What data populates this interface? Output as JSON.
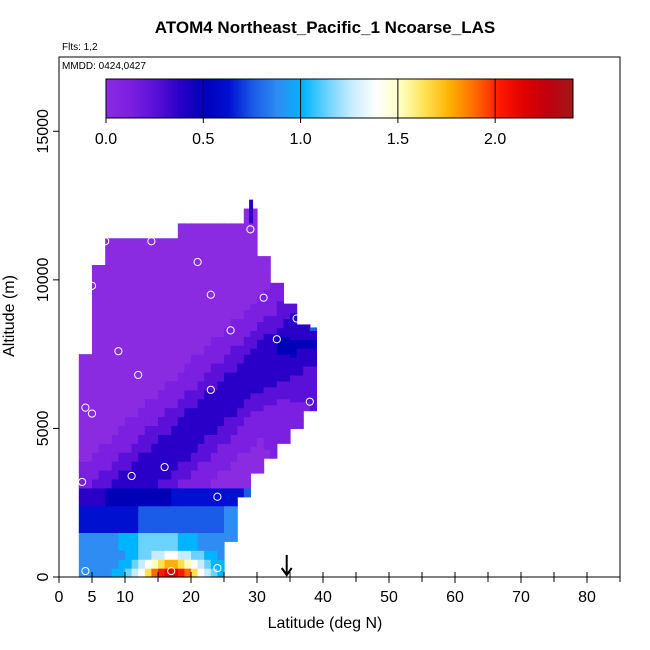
{
  "chart_data": {
    "type": "heatmap",
    "title": "ATOM4 Northeast_Pacific_1 Ncoarse_LAS",
    "subtitle_flights": "Flts: 1,2",
    "subtitle_dates": "MMDD: 0424,0427",
    "xlabel": "Latitude (deg N)",
    "ylabel": "Altitude (m)",
    "xlim": [
      0,
      85
    ],
    "ylim": [
      0,
      17500
    ],
    "x_ticks": [
      0,
      5,
      10,
      20,
      30,
      40,
      50,
      60,
      70,
      80
    ],
    "y_ticks": [
      0,
      5000,
      10000,
      15000
    ],
    "colorbar": {
      "range": [
        0,
        2.4
      ],
      "ticks": [
        0.0,
        0.5,
        1.0,
        1.5,
        2.0
      ],
      "tick_labels": [
        "0.0",
        "0.5",
        "1.0",
        "1.5",
        "2.0"
      ],
      "colors": [
        "#8a2be2",
        "#7b1fe0",
        "#5a10d8",
        "#2a00c8",
        "#0000b8",
        "#0010d0",
        "#1a5ce8",
        "#2f8cf2",
        "#00b4ff",
        "#6cd2ff",
        "#c8ecff",
        "#ffffff",
        "#ffffc0",
        "#ffe050",
        "#ffb000",
        "#ff6a00",
        "#ff1a00",
        "#e00000",
        "#c00010",
        "#a01818"
      ]
    },
    "marker_latitude": 34.5,
    "sample_points": [
      {
        "lat": 7,
        "alt": 11300
      },
      {
        "lat": 14,
        "alt": 11300
      },
      {
        "lat": 29,
        "alt": 11700
      },
      {
        "lat": 21,
        "alt": 10600
      },
      {
        "lat": 5,
        "alt": 9800
      },
      {
        "lat": 23,
        "alt": 9500
      },
      {
        "lat": 31,
        "alt": 9400
      },
      {
        "lat": 36,
        "alt": 8700
      },
      {
        "lat": 26,
        "alt": 8300
      },
      {
        "lat": 33,
        "alt": 8000
      },
      {
        "lat": 9,
        "alt": 7600
      },
      {
        "lat": 12,
        "alt": 6800
      },
      {
        "lat": 23,
        "alt": 6300
      },
      {
        "lat": 38,
        "alt": 5900
      },
      {
        "lat": 4,
        "alt": 5700
      },
      {
        "lat": 5,
        "alt": 5500
      },
      {
        "lat": 16,
        "alt": 3700
      },
      {
        "lat": 11,
        "alt": 3400
      },
      {
        "lat": 3.5,
        "alt": 3200
      },
      {
        "lat": 24,
        "alt": 2700
      },
      {
        "lat": 4,
        "alt": 200
      },
      {
        "lat": 17,
        "alt": 200
      },
      {
        "lat": 24,
        "alt": 300
      }
    ]
  }
}
